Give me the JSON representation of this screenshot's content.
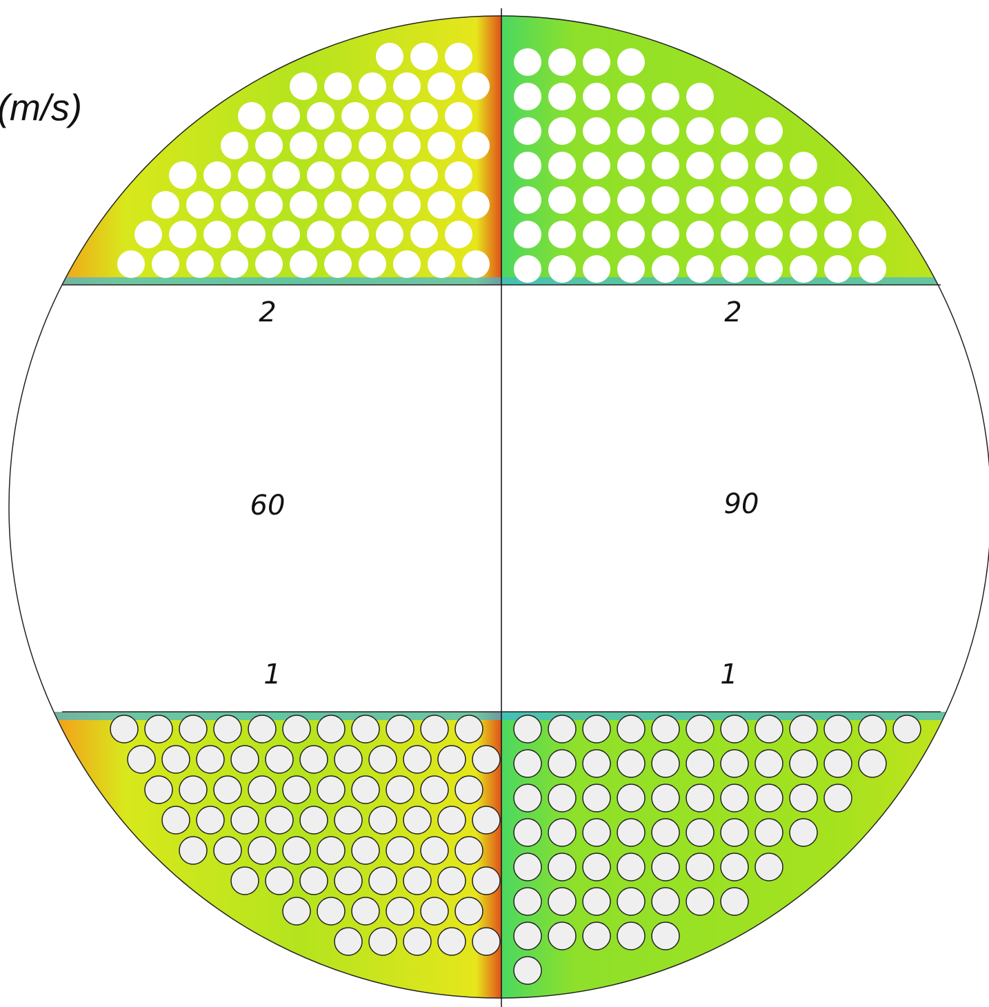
{
  "unit_label": "(m/s)",
  "section_labels": [
    "2",
    "2",
    "60",
    "90",
    "1",
    "1"
  ]
}
